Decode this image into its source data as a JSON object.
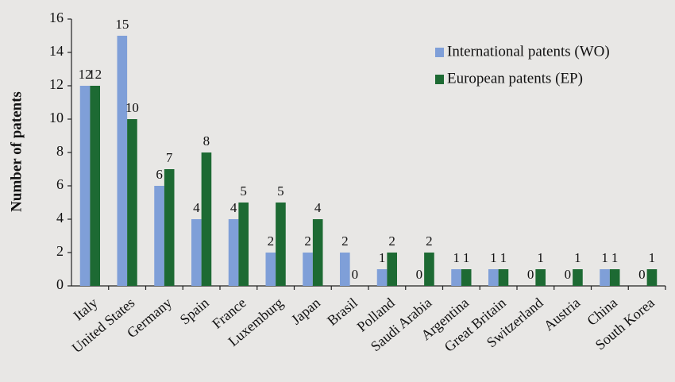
{
  "chart_data": {
    "type": "bar",
    "y_label": "Number of patents",
    "categories": [
      "Italy",
      "United States",
      "Germany",
      "Spain",
      "France",
      "Luxemburg",
      "Japan",
      "Brasil",
      "Polland",
      "Saudi Arabia",
      "Argentina",
      "Great Britain",
      "Switzerland",
      "Austria",
      "China",
      "South Korea"
    ],
    "series": [
      {
        "name": "International patents (WO)",
        "color": "#7f9fd8",
        "values": [
          12,
          15,
          6,
          4,
          4,
          2,
          2,
          2,
          1,
          0,
          1,
          1,
          0,
          0,
          1,
          0
        ]
      },
      {
        "name": "European patents (EP)",
        "color": "#1d6a33",
        "values": [
          12,
          10,
          7,
          8,
          5,
          5,
          4,
          0,
          2,
          2,
          1,
          1,
          1,
          1,
          1,
          1
        ]
      }
    ],
    "ylim": [
      0,
      16
    ],
    "yticks": [
      0,
      2,
      4,
      6,
      8,
      10,
      12,
      14,
      16
    ],
    "grid": false,
    "legend": "upper right"
  }
}
